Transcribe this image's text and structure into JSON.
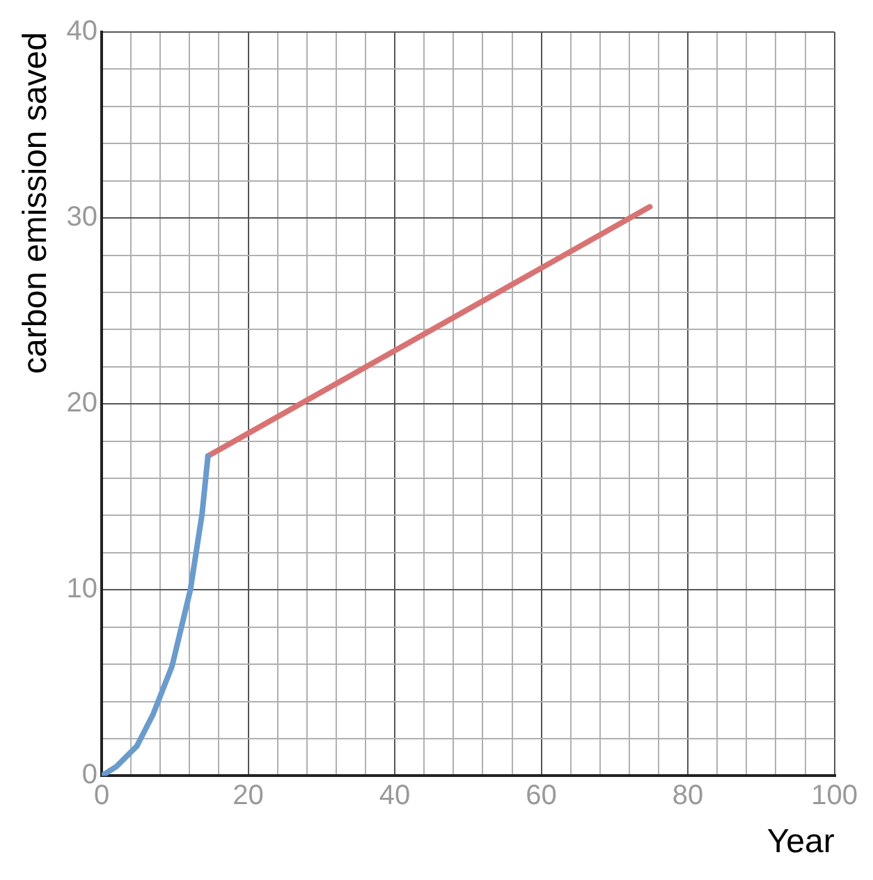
{
  "chart_data": {
    "type": "line",
    "xlabel": "Year",
    "ylabel": "carbon emission saved",
    "xlim": [
      0,
      100
    ],
    "ylim": [
      0,
      40
    ],
    "xticks": [
      0,
      {
        "value": 4,
        "label": null
      },
      {
        "value": 8,
        "label": null
      },
      {
        "value": 12,
        "label": null
      },
      {
        "value": 16,
        "label": null
      },
      20,
      {
        "value": 24,
        "label": null
      },
      {
        "value": 28,
        "label": null
      },
      {
        "value": 32,
        "label": null
      },
      {
        "value": 36,
        "label": null
      },
      40,
      {
        "value": 44,
        "label": null
      },
      {
        "value": 48,
        "label": null
      },
      {
        "value": 52,
        "label": null
      },
      {
        "value": 56,
        "label": null
      },
      60,
      {
        "value": 64,
        "label": null
      },
      {
        "value": 68,
        "label": null
      },
      {
        "value": 72,
        "label": null
      },
      {
        "value": 76,
        "label": null
      },
      80,
      {
        "value": 84,
        "label": null
      },
      {
        "value": 88,
        "label": null
      },
      {
        "value": 92,
        "label": null
      },
      {
        "value": 96,
        "label": null
      },
      100
    ],
    "yticks": [
      0,
      {
        "value": 2,
        "label": null
      },
      {
        "value": 4,
        "label": null
      },
      {
        "value": 6,
        "label": null
      },
      {
        "value": 8,
        "label": null
      },
      10,
      {
        "value": 12,
        "label": null
      },
      {
        "value": 14,
        "label": null
      },
      {
        "value": 16,
        "label": null
      },
      {
        "value": 18,
        "label": null
      },
      20,
      {
        "value": 22,
        "label": null
      },
      {
        "value": 24,
        "label": null
      },
      {
        "value": 26,
        "label": null
      },
      {
        "value": 28,
        "label": null
      },
      30,
      {
        "value": 32,
        "label": null
      },
      {
        "value": 34,
        "label": null
      },
      {
        "value": 36,
        "label": null
      },
      {
        "value": 38,
        "label": null
      },
      40
    ],
    "grid": true,
    "legend": false,
    "marker": "none",
    "line_style": "solid",
    "series": [
      {
        "color": "#6a9bcc",
        "x": [
          0,
          2,
          4.8,
          7,
          9.6,
          12.1,
          13.7,
          14.5
        ],
        "values": [
          0,
          0.5,
          1.6,
          3.3,
          5.9,
          10,
          14.1,
          17.2
        ]
      },
      {
        "color": "#d97373",
        "x": [
          14.5,
          74.8
        ],
        "values": [
          17.2,
          30.6
        ]
      }
    ]
  }
}
